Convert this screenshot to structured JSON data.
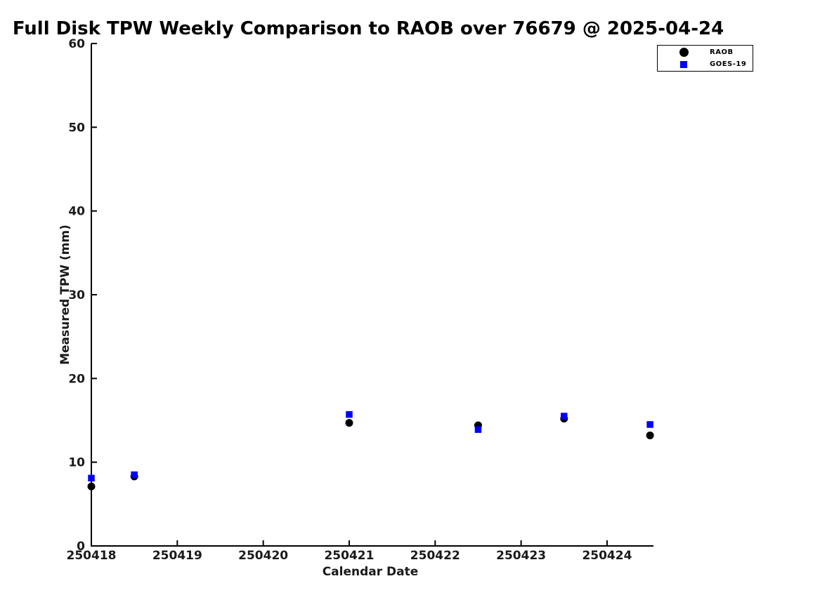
{
  "chart_data": {
    "type": "scatter",
    "title": "Full Disk TPW Weekly Comparison to RAOB over 76679 @ 2025-04-24",
    "xlabel": "Calendar Date",
    "ylabel": "Measured TPW (mm)",
    "xlim": [
      250418,
      250424.54
    ],
    "ylim": [
      0,
      60
    ],
    "x_ticks": [
      250418,
      250419,
      250420,
      250421,
      250422,
      250423,
      250424
    ],
    "x_tick_labels": [
      "250418",
      "250419",
      "250420",
      "250421",
      "250422",
      "250423",
      "250424"
    ],
    "y_ticks": [
      0,
      10,
      20,
      30,
      40,
      50,
      60
    ],
    "y_tick_labels": [
      "0",
      "10",
      "20",
      "30",
      "40",
      "50",
      "60"
    ],
    "grid": false,
    "legend_position": "top-right",
    "axis_color": "#000000",
    "series": [
      {
        "name": "RAOB",
        "marker": "circle",
        "color": "#000000",
        "x": [
          250418.0,
          250418.5,
          250421.0,
          250422.5,
          250423.5,
          250424.5
        ],
        "y": [
          7.1,
          8.3,
          14.7,
          14.4,
          15.2,
          13.2
        ]
      },
      {
        "name": "GOES-19",
        "marker": "square",
        "color": "#0000ff",
        "x": [
          250418.0,
          250418.5,
          250421.0,
          250422.5,
          250423.5,
          250424.5
        ],
        "y": [
          8.1,
          8.5,
          15.7,
          13.9,
          15.5,
          14.5
        ]
      }
    ]
  }
}
